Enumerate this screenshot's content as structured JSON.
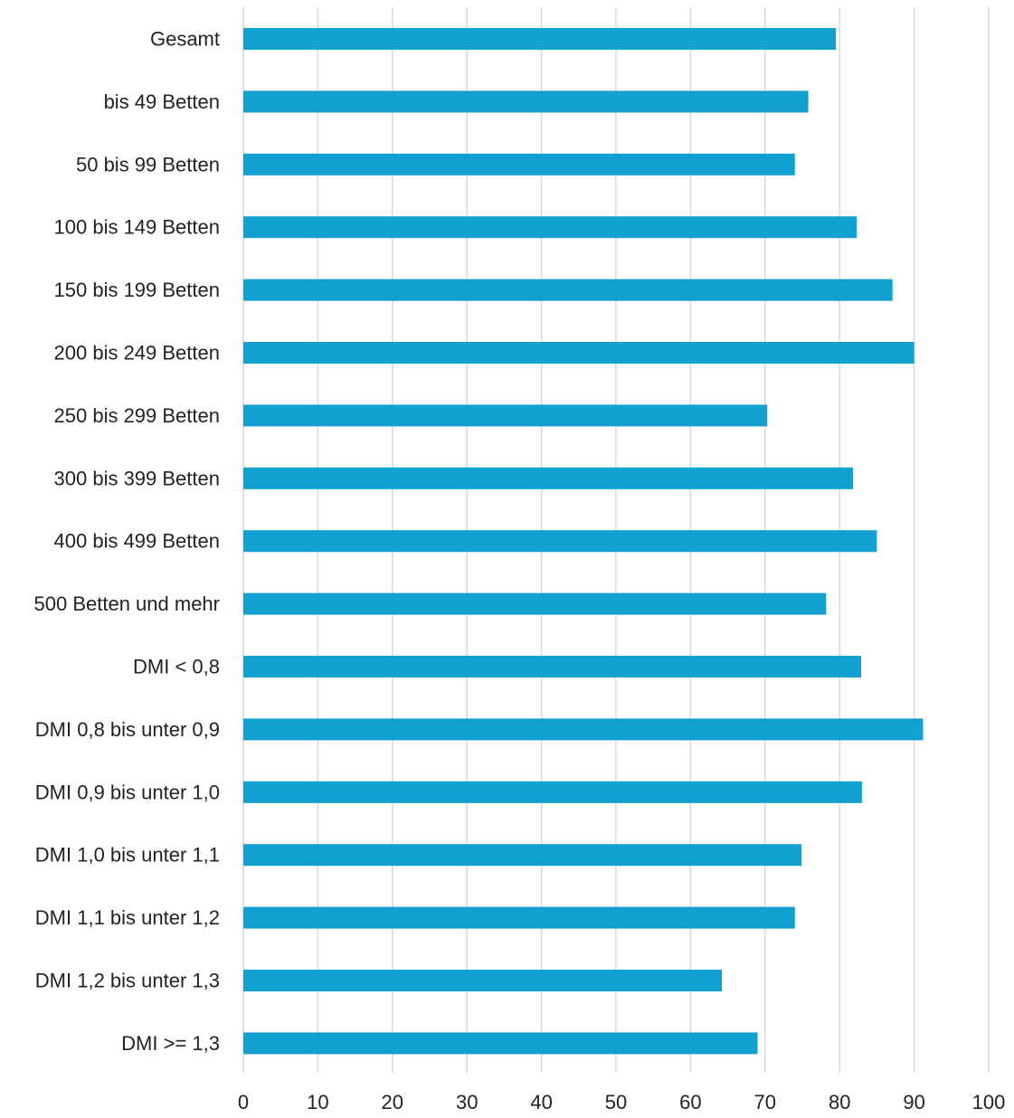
{
  "chart_data": {
    "type": "bar",
    "orientation": "horizontal",
    "title": "",
    "xlabel": "",
    "ylabel": "",
    "categories": [
      "Gesamt",
      "bis 49 Betten",
      "50 bis 99 Betten",
      "100 bis 149 Betten",
      "150 bis 199 Betten",
      "200 bis 249 Betten",
      "250 bis 299 Betten",
      "300 bis 399 Betten",
      "400 bis 499 Betten",
      "500 Betten und mehr",
      "DMI < 0,8",
      "DMI 0,8 bis unter 0,9",
      "DMI 0,9 bis unter 1,0",
      "DMI 1,0 bis unter 1,1",
      "DMI 1,1 bis unter 1,2",
      "DMI 1,2 bis unter 1,3",
      "DMI >= 1,3"
    ],
    "values": [
      79.5,
      75.8,
      74.0,
      82.3,
      87.1,
      90.0,
      70.3,
      81.8,
      85.0,
      78.2,
      82.9,
      91.2,
      83.0,
      74.9,
      74.0,
      64.2,
      69.0
    ],
    "xlim": [
      0,
      100
    ],
    "xticks": [
      0,
      10,
      20,
      30,
      40,
      50,
      60,
      70,
      80,
      90,
      100
    ],
    "grid": true,
    "legend": "none",
    "colors": {
      "bar": "#12a0d0",
      "grid": "#d9d9d9",
      "text": "#222222"
    }
  }
}
